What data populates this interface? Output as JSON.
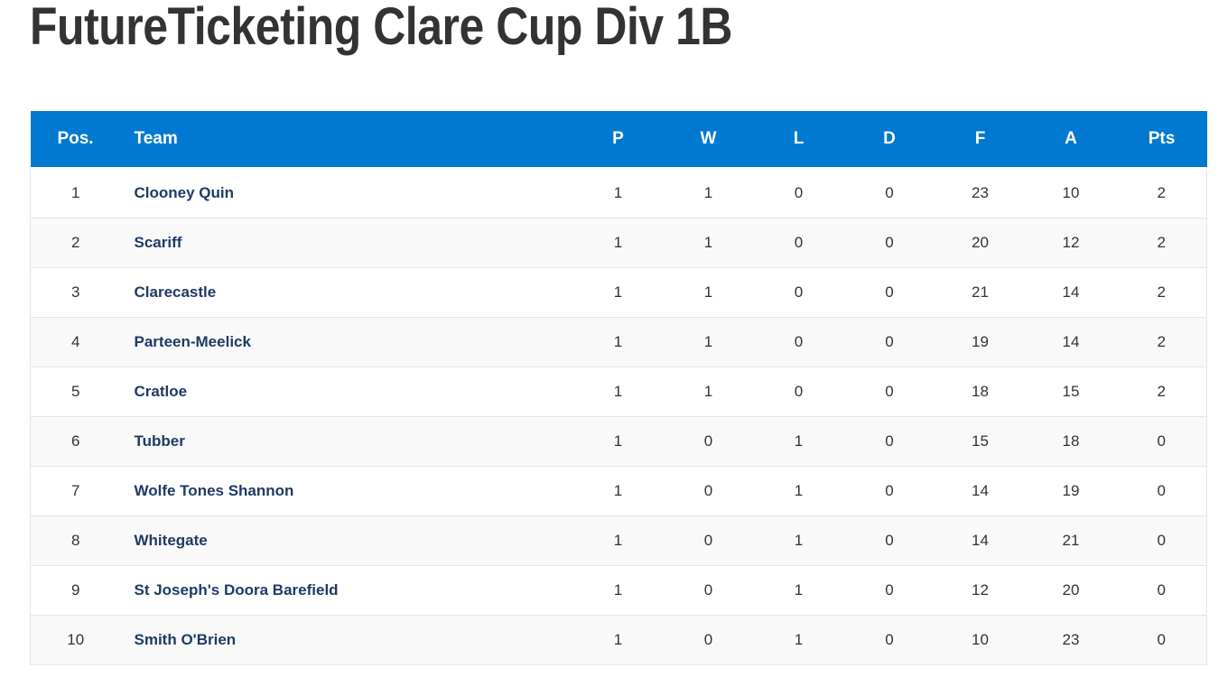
{
  "page": {
    "title": "FutureTicketing Clare Cup Div 1B"
  },
  "table": {
    "headers": {
      "pos": "Pos.",
      "team": "Team",
      "p": "P",
      "w": "W",
      "l": "L",
      "d": "D",
      "f": "F",
      "a": "A",
      "pts": "Pts"
    },
    "rows": [
      {
        "pos": "1",
        "team": "Clooney Quin",
        "p": "1",
        "w": "1",
        "l": "0",
        "d": "0",
        "f": "23",
        "a": "10",
        "pts": "2"
      },
      {
        "pos": "2",
        "team": "Scariff",
        "p": "1",
        "w": "1",
        "l": "0",
        "d": "0",
        "f": "20",
        "a": "12",
        "pts": "2"
      },
      {
        "pos": "3",
        "team": "Clarecastle",
        "p": "1",
        "w": "1",
        "l": "0",
        "d": "0",
        "f": "21",
        "a": "14",
        "pts": "2"
      },
      {
        "pos": "4",
        "team": "Parteen-Meelick",
        "p": "1",
        "w": "1",
        "l": "0",
        "d": "0",
        "f": "19",
        "a": "14",
        "pts": "2"
      },
      {
        "pos": "5",
        "team": "Cratloe",
        "p": "1",
        "w": "1",
        "l": "0",
        "d": "0",
        "f": "18",
        "a": "15",
        "pts": "2"
      },
      {
        "pos": "6",
        "team": "Tubber",
        "p": "1",
        "w": "0",
        "l": "1",
        "d": "0",
        "f": "15",
        "a": "18",
        "pts": "0"
      },
      {
        "pos": "7",
        "team": "Wolfe Tones Shannon",
        "p": "1",
        "w": "0",
        "l": "1",
        "d": "0",
        "f": "14",
        "a": "19",
        "pts": "0"
      },
      {
        "pos": "8",
        "team": "Whitegate",
        "p": "1",
        "w": "0",
        "l": "1",
        "d": "0",
        "f": "14",
        "a": "21",
        "pts": "0"
      },
      {
        "pos": "9",
        "team": "St Joseph's Doora Barefield",
        "p": "1",
        "w": "0",
        "l": "1",
        "d": "0",
        "f": "12",
        "a": "20",
        "pts": "0"
      },
      {
        "pos": "10",
        "team": "Smith O'Brien",
        "p": "1",
        "w": "0",
        "l": "1",
        "d": "0",
        "f": "10",
        "a": "23",
        "pts": "0"
      }
    ],
    "colors": {
      "header_background": "#0179d1",
      "header_text": "#ffffff",
      "team_link": "#1f3a66",
      "row_alt": "#f9f9f9"
    }
  }
}
